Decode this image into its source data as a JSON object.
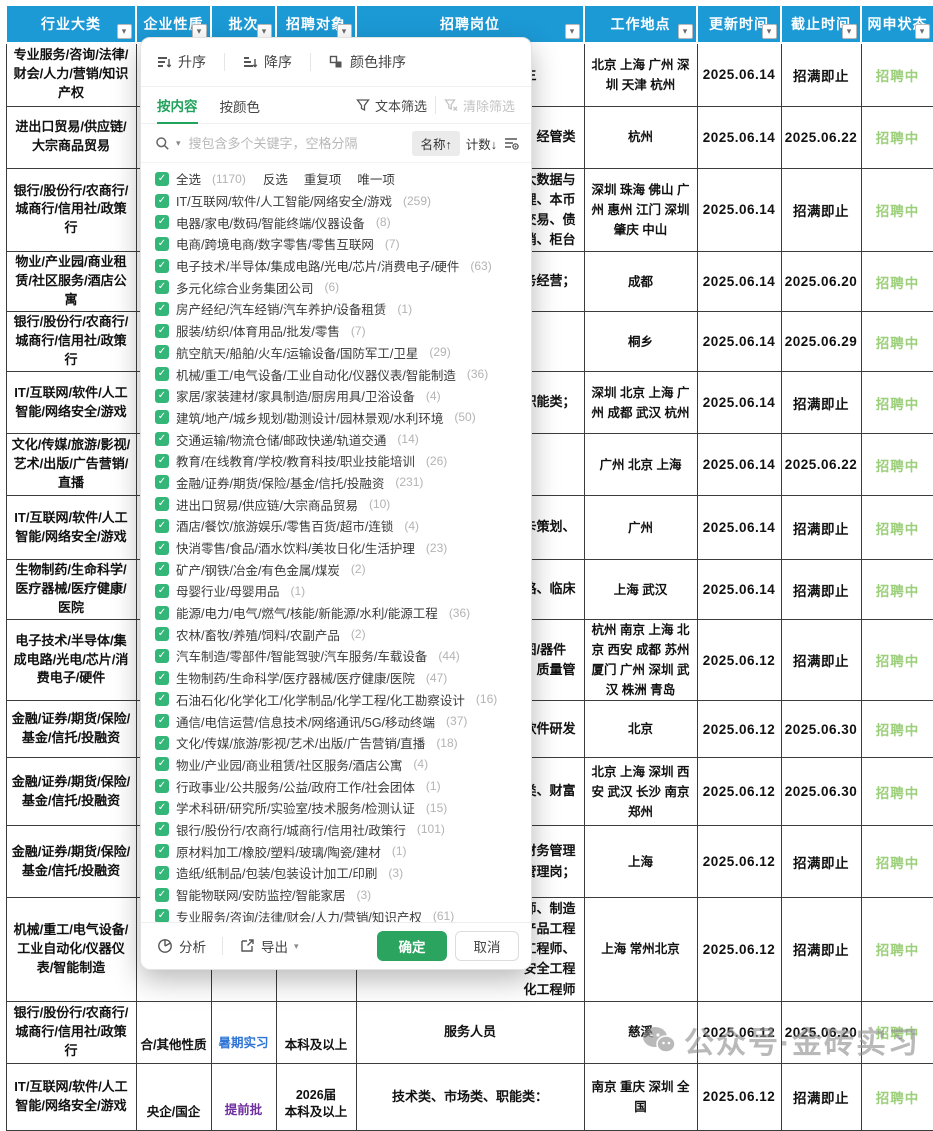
{
  "colors": {
    "header_blue": "#1c9ad6",
    "accent_green": "#21a35c",
    "status_green": "#9ccf7a",
    "batch_purple": "#7030a0",
    "batch_blue": "#2e75d6"
  },
  "table": {
    "columns": [
      "行业大类",
      "企业性质",
      "批次",
      "招聘对象",
      "招聘岗位",
      "工作地点",
      "更新时间",
      "截止时间",
      "网申状态"
    ],
    "rows": [
      {
        "industry": "专业服务/咨询/法律/财会/人力/营销/知识产权",
        "nature": "",
        "batch": "",
        "batch_color": "",
        "target": "",
        "job": "生",
        "job_frag": true,
        "location": "北京 上海 广州 深圳 天津 杭州",
        "updated": "2025.06.14",
        "deadline": "招满即止",
        "status": "招聘中"
      },
      {
        "industry": "进出口贸易/供应链/大宗商品贸易",
        "nature": "",
        "batch": "",
        "batch_color": "",
        "target": "",
        "job": "、经管类",
        "job_frag": true,
        "location": "杭州",
        "updated": "2025.06.14",
        "deadline": "2025.06.22",
        "status": "招聘中"
      },
      {
        "industry": "银行/股份行/农商行/城商行/信用社/政策行",
        "nature": "",
        "batch": "",
        "batch_color": "",
        "target": "",
        "job": "大数据与\n理、本币\n交易、债\n销、柜台",
        "job_frag": true,
        "location": "深圳 珠海 佛山 广州 惠州 江门 深圳 肇庆 中山",
        "updated": "2025.06.14",
        "deadline": "招满即止",
        "status": "招聘中"
      },
      {
        "industry": "物业/产业园/商业租赁/社区服务/酒店公寓",
        "nature": "",
        "batch": "",
        "batch_color": "",
        "target": "",
        "job": "务经营；",
        "job_frag": true,
        "location": "成都",
        "updated": "2025.06.14",
        "deadline": "2025.06.20",
        "status": "招聘中"
      },
      {
        "industry": "银行/股份行/农商行/城商行/信用社/政策行",
        "nature": "",
        "batch": "",
        "batch_color": "",
        "target": "",
        "job": "",
        "job_frag": true,
        "location": "桐乡",
        "updated": "2025.06.14",
        "deadline": "2025.06.29",
        "status": "招聘中"
      },
      {
        "industry": "IT/互联网/软件/人工智能/网络安全/游戏",
        "nature": "",
        "batch": "",
        "batch_color": "",
        "target": "",
        "job": "职能类；",
        "job_frag": true,
        "location": "深圳 北京 上海 广州 成都 武汉 杭州",
        "updated": "2025.06.14",
        "deadline": "招满即止",
        "status": "招聘中"
      },
      {
        "industry": "文化/传媒/旅游/影视/艺术/出版/广告营销/直播",
        "nature": "",
        "batch": "",
        "batch_color": "",
        "target": "",
        "job": "",
        "job_frag": true,
        "location": "广州 北京 上海",
        "updated": "2025.06.14",
        "deadline": "2025.06.22",
        "status": "招聘中"
      },
      {
        "industry": "IT/互联网/软件/人工智能/网络安全/游戏",
        "nature": "",
        "batch": "",
        "batch_color": "",
        "target": "",
        "job": "卡策划、",
        "job_frag": true,
        "location": "广州",
        "updated": "2025.06.14",
        "deadline": "招满即止",
        "status": "招聘中"
      },
      {
        "industry": "生物制药/生命科学/医疗器械/医疗健康/医院",
        "nature": "",
        "batch": "",
        "batch_color": "",
        "target": "",
        "job": "略、临床",
        "job_frag": true,
        "location": "上海 武汉",
        "updated": "2025.06.14",
        "deadline": "招满即止",
        "status": "招聘中"
      },
      {
        "industry": "电子技术/半导体/集成电路/光电/芯片/消费电子/硬件",
        "nature": "",
        "batch": "",
        "batch_color": "",
        "target": "",
        "job": "图/器件\n、质量管",
        "job_frag": true,
        "location": "杭州 南京 上海 北京 西安 成都 苏州 厦门 广州 深圳 武汉 株洲 青岛",
        "updated": "2025.06.12",
        "deadline": "招满即止",
        "status": "招聘中"
      },
      {
        "industry": "金融/证券/期货/保险/基金/信托/投融资",
        "nature": "",
        "batch": "",
        "batch_color": "",
        "target": "",
        "job": "软件研发",
        "job_frag": true,
        "location": "北京",
        "updated": "2025.06.12",
        "deadline": "2025.06.30",
        "status": "招聘中"
      },
      {
        "industry": "金融/证券/期货/保险/基金/信托/投融资",
        "nature": "",
        "batch": "",
        "batch_color": "",
        "target": "",
        "job": "类、财富",
        "job_frag": true,
        "location": "北京 上海 深圳 西安 武汉 长沙 南京 郑州",
        "updated": "2025.06.12",
        "deadline": "2025.06.30",
        "status": "招聘中"
      },
      {
        "industry": "金融/证券/期货/保险/基金/信托/投融资",
        "nature": "",
        "batch": "",
        "batch_color": "",
        "target": "",
        "job": "财务管理\n管理岗；",
        "job_frag": true,
        "location": "上海",
        "updated": "2025.06.12",
        "deadline": "招满即止",
        "status": "招聘中"
      },
      {
        "industry": "机械/重工/电气设备/工业自动化/仪器仪表/智能制造",
        "nature": "",
        "batch": "",
        "batch_color": "",
        "target": "",
        "job": "师、制造\n产品工程\n工程师、\n安全工程\n化工程师",
        "job_frag": true,
        "location": "上海 常州北京",
        "updated": "2025.06.12",
        "deadline": "招满即止",
        "status": "招聘中"
      },
      {
        "industry": "银行/股份行/农商行/城商行/信用社/政策行",
        "nature": "合/其他性质",
        "batch": "暑期实习",
        "batch_color": "blue",
        "target": "本科及以上",
        "job": "服务人员",
        "job_frag": false,
        "location": "慈溪",
        "updated": "2025.06.12",
        "deadline": "2025.06.20",
        "status": "招聘中"
      },
      {
        "industry": "IT/互联网/软件/人工智能/网络安全/游戏",
        "nature": "央企/国企",
        "batch": "提前批",
        "batch_color": "purple",
        "target": "2026届\n本科及以上",
        "job": "技术类、市场类、职能类：",
        "job_frag": false,
        "location": "南京 重庆 深圳 全国",
        "updated": "2025.06.12",
        "deadline": "招满即止",
        "status": "招聘中"
      }
    ]
  },
  "filter_panel": {
    "sort": {
      "asc": "升序",
      "desc": "降序",
      "color": "颜色排序"
    },
    "tabs": {
      "by_content": "按内容",
      "by_color": "按颜色"
    },
    "text_filter": "文本筛选",
    "clear_filter": "清除筛选",
    "search_placeholder": "搜包含多个关键字，空格分隔",
    "sort_name": "名称↑",
    "sort_count": "计数↓",
    "select_all": {
      "label": "全选",
      "count": "(1170)",
      "invert": "反选",
      "dupes": "重复项",
      "unique": "唯一项"
    },
    "items": [
      {
        "label": "IT/互联网/软件/人工智能/网络安全/游戏",
        "count": "(259)"
      },
      {
        "label": "电器/家电/数码/智能终端/仪器设备",
        "count": "(8)"
      },
      {
        "label": "电商/跨境电商/数字零售/零售互联网",
        "count": "(7)"
      },
      {
        "label": "电子技术/半导体/集成电路/光电/芯片/消费电子/硬件",
        "count": "(63)"
      },
      {
        "label": "多元化综合业务集团公司",
        "count": "(6)"
      },
      {
        "label": "房产经纪/汽车经销/汽车养护/设备租赁",
        "count": "(1)"
      },
      {
        "label": "服装/纺织/体育用品/批发/零售",
        "count": "(7)"
      },
      {
        "label": "航空航天/船舶/火车/运输设备/国防军工/卫星",
        "count": "(29)"
      },
      {
        "label": "机械/重工/电气设备/工业自动化/仪器仪表/智能制造",
        "count": "(36)"
      },
      {
        "label": "家居/家装建材/家具制造/厨房用具/卫浴设备",
        "count": "(4)"
      },
      {
        "label": "建筑/地产/城乡规划/勘测设计/园林景观/水利环境",
        "count": "(50)"
      },
      {
        "label": "交通运输/物流仓储/邮政快递/轨道交通",
        "count": "(14)"
      },
      {
        "label": "教育/在线教育/学校/教育科技/职业技能培训",
        "count": "(26)"
      },
      {
        "label": "金融/证券/期货/保险/基金/信托/投融资",
        "count": "(231)"
      },
      {
        "label": "进出口贸易/供应链/大宗商品贸易",
        "count": "(10)"
      },
      {
        "label": "酒店/餐饮/旅游娱乐/零售百货/超市/连锁",
        "count": "(4)"
      },
      {
        "label": "快消零售/食品/酒水饮料/美妆日化/生活护理",
        "count": "(23)"
      },
      {
        "label": "矿产/钢铁/冶金/有色金属/煤炭",
        "count": "(2)"
      },
      {
        "label": "母婴行业/母婴用品",
        "count": "(1)"
      },
      {
        "label": "能源/电力/电气/燃气/核能/新能源/水利/能源工程",
        "count": "(36)"
      },
      {
        "label": "农林/畜牧/养殖/饲料/农副产品",
        "count": "(2)"
      },
      {
        "label": "汽车制造/零部件/智能驾驶/汽车服务/车载设备",
        "count": "(44)"
      },
      {
        "label": "生物制药/生命科学/医疗器械/医疗健康/医院",
        "count": "(47)"
      },
      {
        "label": "石油石化/化学化工/化学制品/化学工程/化工勘察设计",
        "count": "(16)"
      },
      {
        "label": "通信/电信运营/信息技术/网络通讯/5G/移动终端",
        "count": "(37)"
      },
      {
        "label": "文化/传媒/旅游/影视/艺术/出版/广告营销/直播",
        "count": "(18)"
      },
      {
        "label": "物业/产业园/商业租赁/社区服务/酒店公寓",
        "count": "(4)"
      },
      {
        "label": "行政事业/公共服务/公益/政府工作/社会团体",
        "count": "(1)"
      },
      {
        "label": "学术科研/研究所/实验室/技术服务/检测认证",
        "count": "(15)"
      },
      {
        "label": "银行/股份行/农商行/城商行/信用社/政策行",
        "count": "(101)"
      },
      {
        "label": "原材料加工/橡胶/塑料/玻璃/陶瓷/建材",
        "count": "(1)"
      },
      {
        "label": "造纸/纸制品/包装/包装设计加工/印刷",
        "count": "(3)"
      },
      {
        "label": "智能物联网/安防监控/智能家居",
        "count": "(3)"
      },
      {
        "label": "专业服务/咨询/法律/财会/人力/营销/知识产权",
        "count": "(61)"
      }
    ],
    "footer": {
      "analyze": "分析",
      "export": "导出",
      "ok": "确定",
      "cancel": "取消"
    }
  },
  "watermark": {
    "text": "公众号·金砖实习"
  }
}
